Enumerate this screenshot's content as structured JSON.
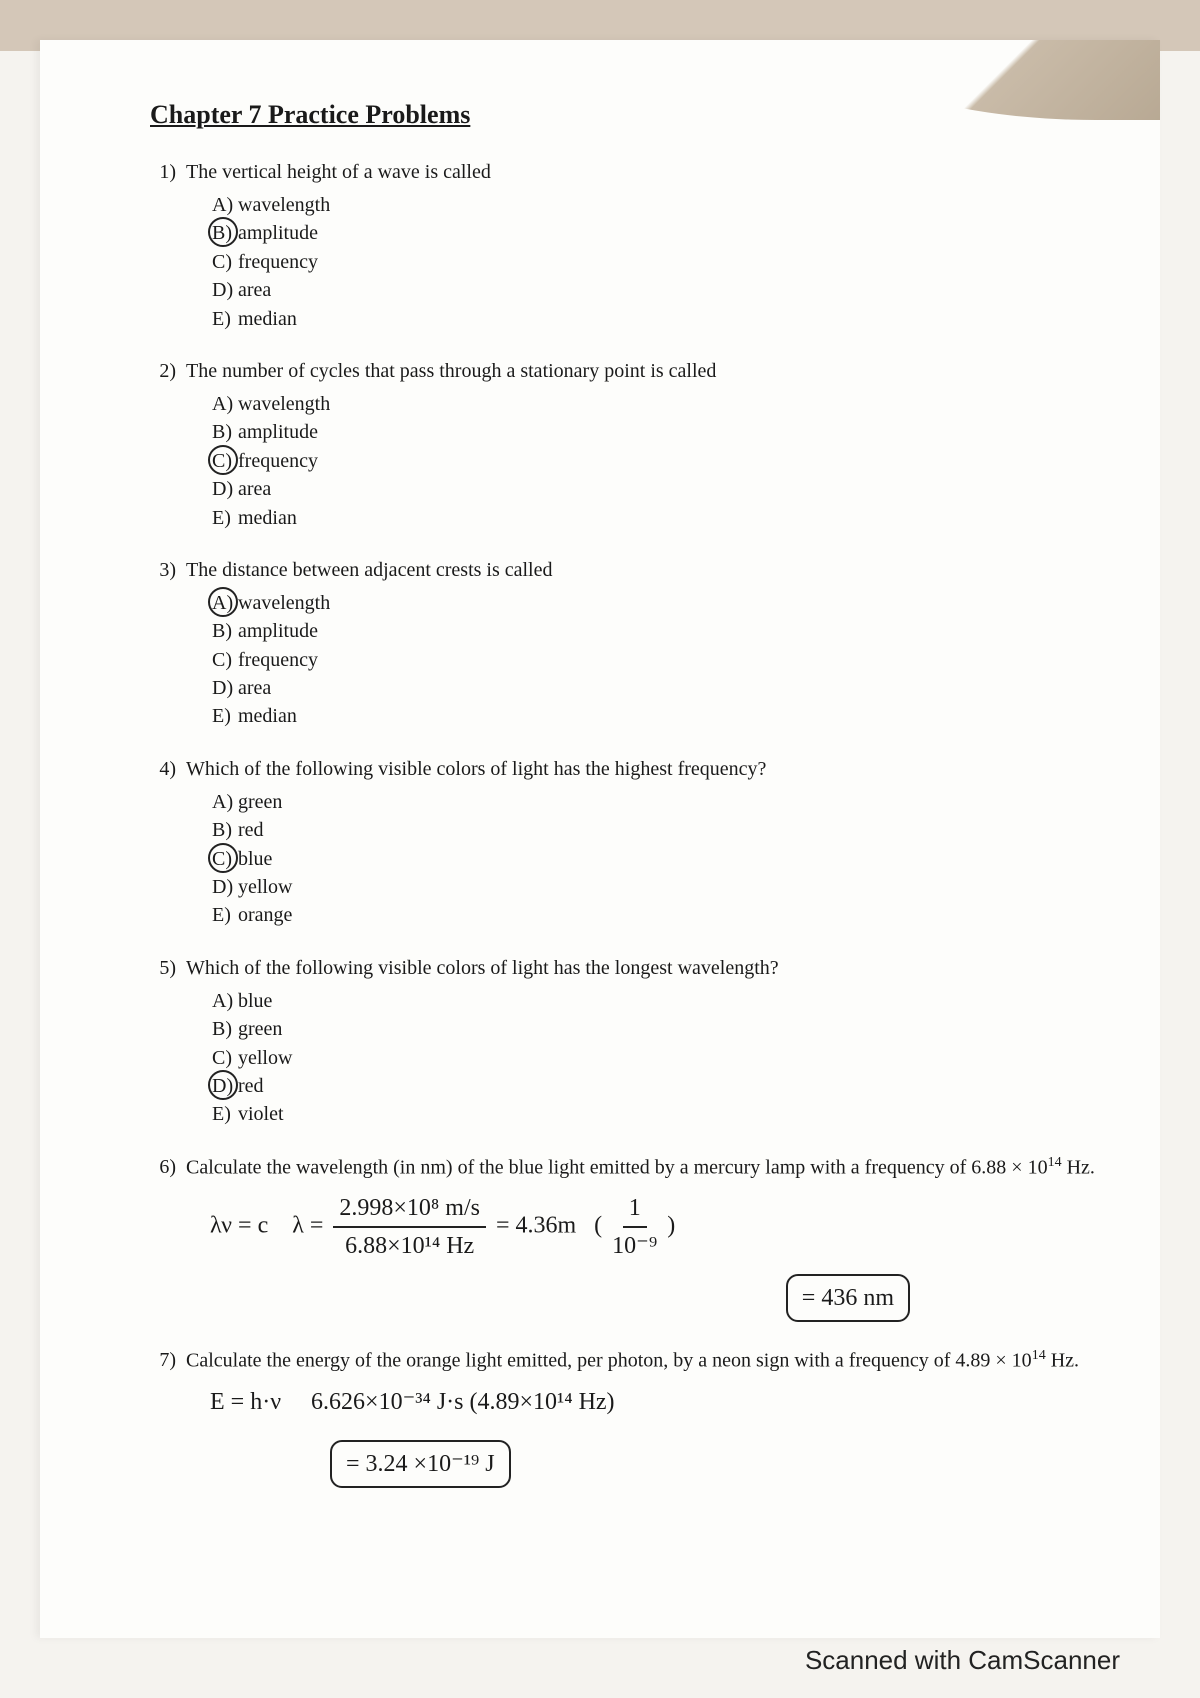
{
  "title": "Chapter 7 Practice Problems",
  "questions": [
    {
      "num": "1)",
      "stem": "The vertical height of a wave is called",
      "options": [
        {
          "letter": "A)",
          "text": "wavelength",
          "circled": false
        },
        {
          "letter": "B)",
          "text": "amplitude",
          "circled": true
        },
        {
          "letter": "C)",
          "text": "frequency",
          "circled": false
        },
        {
          "letter": "D)",
          "text": "area",
          "circled": false
        },
        {
          "letter": "E)",
          "text": "median",
          "circled": false
        }
      ]
    },
    {
      "num": "2)",
      "stem": "The number of cycles that pass through a stationary point is called",
      "options": [
        {
          "letter": "A)",
          "text": "wavelength",
          "circled": false
        },
        {
          "letter": "B)",
          "text": "amplitude",
          "circled": false
        },
        {
          "letter": "C)",
          "text": "frequency",
          "circled": true
        },
        {
          "letter": "D)",
          "text": "area",
          "circled": false
        },
        {
          "letter": "E)",
          "text": "median",
          "circled": false
        }
      ]
    },
    {
      "num": "3)",
      "stem": "The distance between adjacent crests is called",
      "options": [
        {
          "letter": "A)",
          "text": "wavelength",
          "circled": true
        },
        {
          "letter": "B)",
          "text": "amplitude",
          "circled": false
        },
        {
          "letter": "C)",
          "text": "frequency",
          "circled": false
        },
        {
          "letter": "D)",
          "text": "area",
          "circled": false
        },
        {
          "letter": "E)",
          "text": "median",
          "circled": false
        }
      ]
    },
    {
      "num": "4)",
      "stem": "Which of the following visible colors of light has the highest frequency?",
      "options": [
        {
          "letter": "A)",
          "text": "green",
          "circled": false
        },
        {
          "letter": "B)",
          "text": "red",
          "circled": false
        },
        {
          "letter": "C)",
          "text": "blue",
          "circled": true
        },
        {
          "letter": "D)",
          "text": "yellow",
          "circled": false
        },
        {
          "letter": "E)",
          "text": "orange",
          "circled": false
        }
      ]
    },
    {
      "num": "5)",
      "stem": "Which of the following visible colors of light has the longest wavelength?",
      "options": [
        {
          "letter": "A)",
          "text": "blue",
          "circled": false
        },
        {
          "letter": "B)",
          "text": "green",
          "circled": false
        },
        {
          "letter": "C)",
          "text": "yellow",
          "circled": false
        },
        {
          "letter": "D)",
          "text": "red",
          "circled": true
        },
        {
          "letter": "E)",
          "text": "violet",
          "circled": false
        }
      ]
    },
    {
      "num": "6)",
      "stem_html": "Calculate the wavelength (in nm) of the blue light emitted by a mercury lamp with a frequency of 6.88 × 10<sup>14</sup> Hz.",
      "work": {
        "eq1": "λν = c",
        "frac_num": "2.998×10⁸ m/s",
        "frac_den": "6.88×10¹⁴ Hz",
        "after_eq": "= 4.36m",
        "paren_num": "1",
        "paren_den": "10⁻⁹",
        "boxed": "= 436 nm"
      }
    },
    {
      "num": "7)",
      "stem_html": "Calculate the energy of the orange light emitted, per photon, by a neon sign with a frequency of 4.89 × 10<sup>14</sup> Hz.",
      "work": {
        "eq1": "E = h·ν",
        "prod": "6.626×10⁻³⁴ J·s (4.89×10¹⁴ Hz)",
        "boxed": "= 3.24 ×10⁻¹⁹ J"
      }
    }
  ],
  "scanner_note": "Scanned with CamScanner",
  "colors": {
    "bg_page": "#fdfdfb",
    "bg_outer": "#d4c7b8",
    "ink": "#1a1a1a"
  }
}
